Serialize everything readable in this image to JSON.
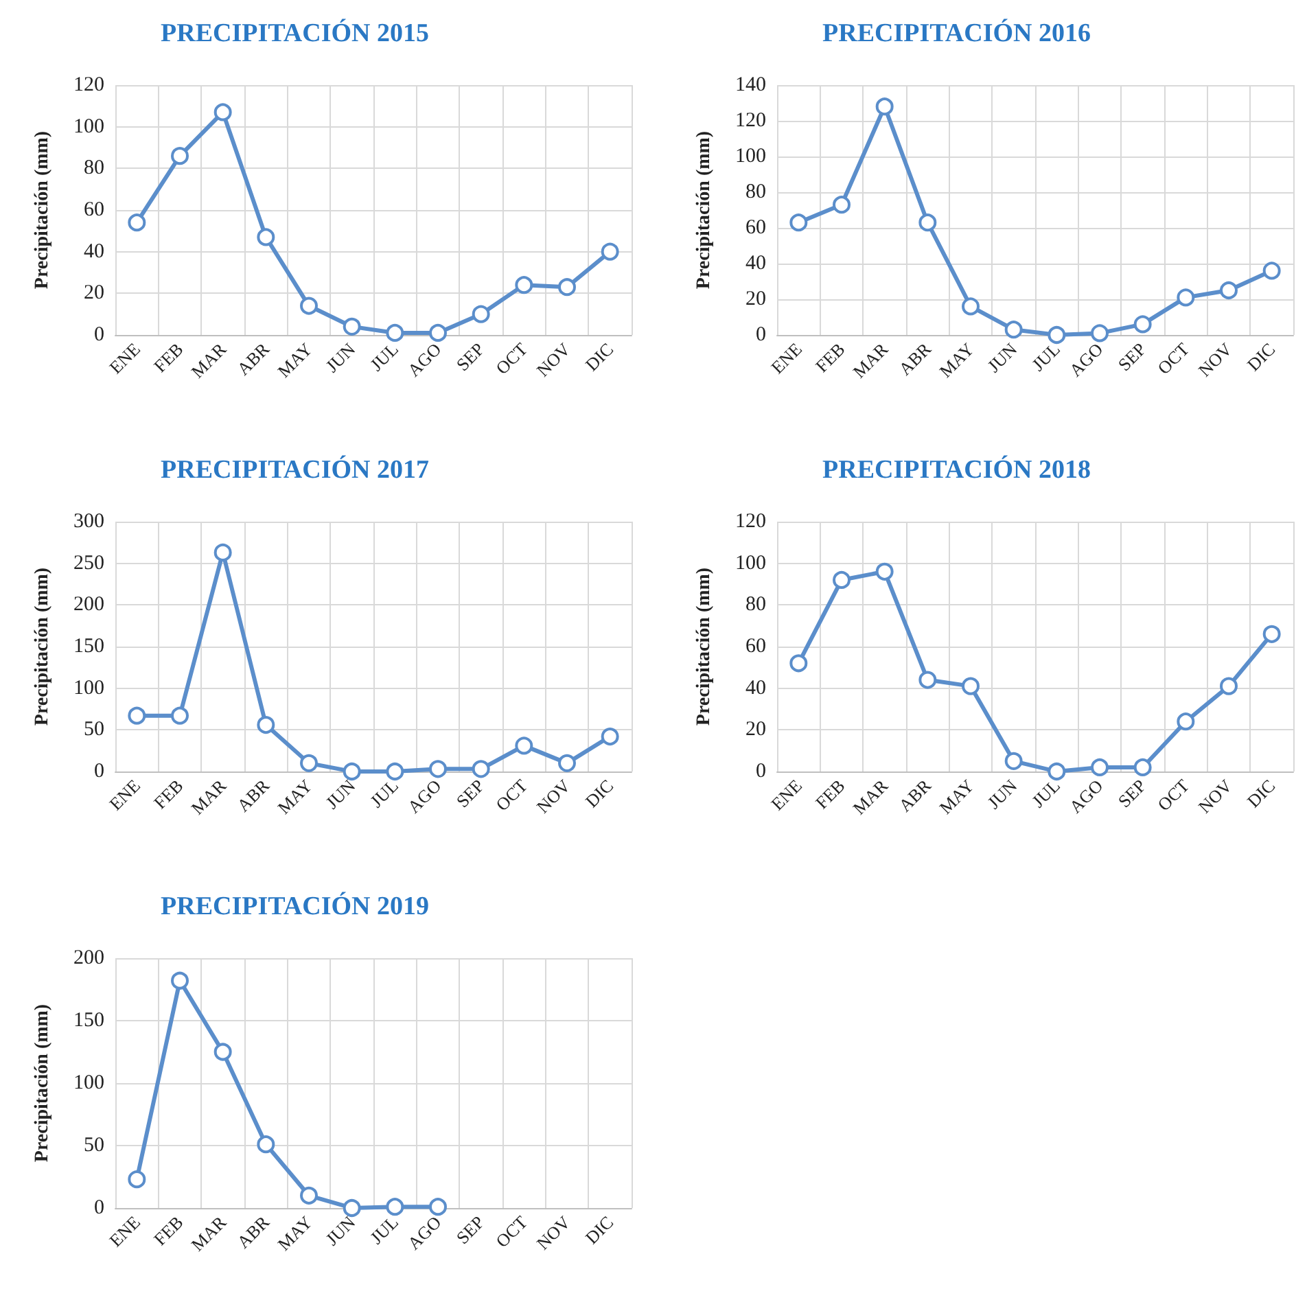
{
  "chart_data": [
    {
      "type": "line",
      "title": "PRECIPITACIÓN 2015",
      "ylabel": "Precipitación (mm)",
      "categories": [
        "ENE",
        "FEB",
        "MAR",
        "ABR",
        "MAY",
        "JUN",
        "JUL",
        "AGO",
        "SEP",
        "OCT",
        "NOV",
        "DIC"
      ],
      "series": [
        {
          "color": "#5b8ecb",
          "values": [
            54,
            86,
            107,
            47,
            14,
            4,
            1,
            1,
            10,
            24,
            23,
            40
          ]
        }
      ],
      "ylim": [
        0,
        120
      ],
      "yticks": [
        0,
        20,
        40,
        60,
        80,
        100,
        120
      ],
      "grid": true,
      "marker": "circle",
      "line_style": "solid"
    },
    {
      "type": "line",
      "title": "PRECIPITACIÓN 2016",
      "ylabel": "Precipitación (mm)",
      "categories": [
        "ENE",
        "FEB",
        "MAR",
        "ABR",
        "MAY",
        "JUN",
        "JUL",
        "AGO",
        "SEP",
        "OCT",
        "NOV",
        "DIC"
      ],
      "series": [
        {
          "color": "#5b8ecb",
          "values": [
            63,
            73,
            128,
            63,
            16,
            3,
            0,
            1,
            6,
            21,
            25,
            36
          ]
        }
      ],
      "ylim": [
        0,
        140
      ],
      "yticks": [
        0,
        20,
        40,
        60,
        80,
        100,
        120,
        140
      ],
      "grid": true,
      "marker": "circle",
      "line_style": "solid"
    },
    {
      "type": "line",
      "title": "PRECIPITACIÓN 2017",
      "ylabel": "Precipitación (mm)",
      "categories": [
        "ENE",
        "FEB",
        "MAR",
        "ABR",
        "MAY",
        "JUN",
        "JUL",
        "AGO",
        "SEP",
        "OCT",
        "NOV",
        "DIC"
      ],
      "series": [
        {
          "color": "#5b8ecb",
          "values": [
            67,
            67,
            263,
            56,
            10,
            0,
            0,
            3,
            3,
            31,
            10,
            42
          ]
        }
      ],
      "ylim": [
        0,
        300
      ],
      "yticks": [
        0,
        50,
        100,
        150,
        200,
        250,
        300
      ],
      "grid": true,
      "marker": "circle",
      "line_style": "solid"
    },
    {
      "type": "line",
      "title": "PRECIPITACIÓN 2018",
      "ylabel": "Precipitación (mm)",
      "categories": [
        "ENE",
        "FEB",
        "MAR",
        "ABR",
        "MAY",
        "JUN",
        "JUL",
        "AGO",
        "SEP",
        "OCT",
        "NOV",
        "DIC"
      ],
      "series": [
        {
          "color": "#5b8ecb",
          "values": [
            52,
            92,
            96,
            44,
            41,
            5,
            0,
            2,
            2,
            24,
            41,
            66
          ]
        }
      ],
      "ylim": [
        0,
        120
      ],
      "yticks": [
        0,
        20,
        40,
        60,
        80,
        100,
        120
      ],
      "grid": true,
      "marker": "circle",
      "line_style": "solid"
    },
    {
      "type": "line",
      "title": "PRECIPITACIÓN 2019",
      "ylabel": "Precipitación (mm)",
      "categories": [
        "ENE",
        "FEB",
        "MAR",
        "ABR",
        "MAY",
        "JUN",
        "JUL",
        "AGO",
        "SEP",
        "OCT",
        "NOV",
        "DIC"
      ],
      "series": [
        {
          "color": "#5b8ecb",
          "values": [
            23,
            182,
            125,
            51,
            10,
            0,
            1,
            1,
            null,
            null,
            null,
            null
          ]
        }
      ],
      "ylim": [
        0,
        200
      ],
      "yticks": [
        0,
        50,
        100,
        150,
        200
      ],
      "grid": true,
      "marker": "circle",
      "line_style": "solid"
    }
  ]
}
